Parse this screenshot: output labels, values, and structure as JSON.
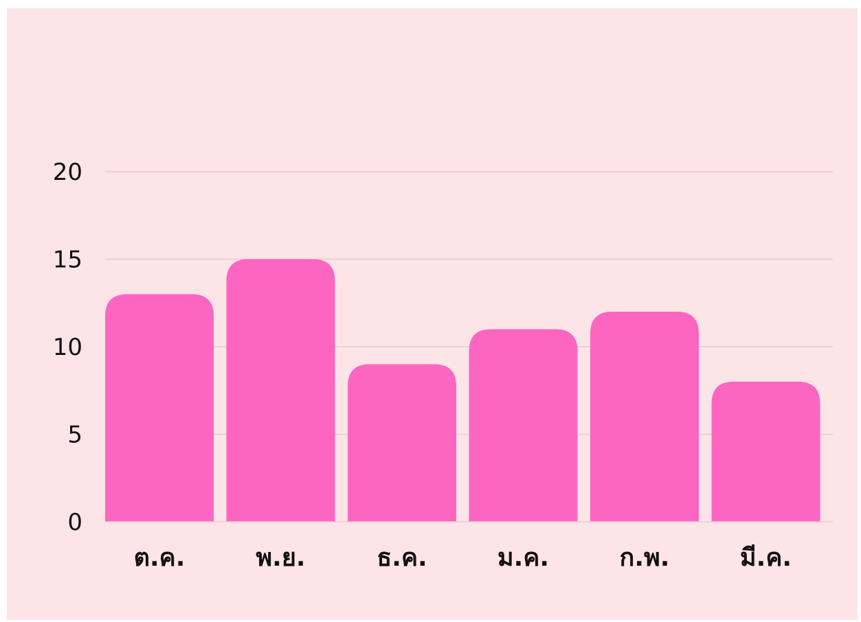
{
  "colors": {
    "background": "#fde4e7",
    "bar": "#fd66c0",
    "gridline": "#e8c9ce",
    "text": "#111111"
  },
  "chart_data": {
    "type": "bar",
    "title": "",
    "xlabel": "",
    "ylabel": "",
    "categories": [
      "ต.ค.",
      "พ.ย.",
      "ธ.ค.",
      "ม.ค.",
      "ก.พ.",
      "มี.ค."
    ],
    "values": [
      13,
      15,
      9,
      11,
      12,
      8
    ],
    "ylim": [
      0,
      20
    ],
    "yticks": [
      "0",
      "5",
      "10",
      "15",
      "20"
    ],
    "grid": true,
    "legend": "none"
  }
}
